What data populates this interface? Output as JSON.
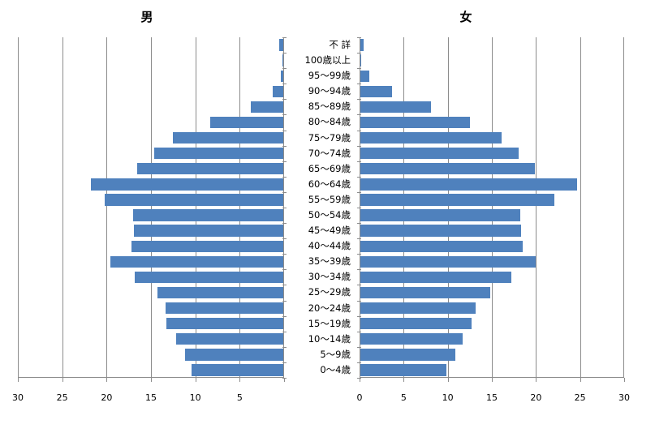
{
  "chart_data": [
    {
      "type": "bar",
      "orientation": "horizontal",
      "title": "男",
      "xlabel": "",
      "ylabel": "",
      "xlim": [
        30,
        0
      ],
      "xticks": [
        30,
        25,
        20,
        15,
        10,
        5
      ],
      "grid": true,
      "categories": [
        "不 詳",
        "100歳以上",
        "95〜99歳",
        "90〜94歳",
        "85〜89歳",
        "80〜84歳",
        "75〜79歳",
        "70〜74歳",
        "65〜69歳",
        "60〜64歳",
        "55〜59歳",
        "50〜54歳",
        "45〜49歳",
        "40〜44歳",
        "35〜39歳",
        "30〜34歳",
        "25〜29歳",
        "20〜24歳",
        "15〜19歳",
        "10〜14歳",
        "5〜9歳",
        "0〜4歳"
      ],
      "values": [
        0.5,
        0.05,
        0.3,
        1.2,
        3.7,
        8.2,
        12.4,
        14.5,
        16.5,
        21.7,
        20.1,
        16.9,
        16.8,
        17.1,
        19.5,
        16.7,
        14.2,
        13.3,
        13.2,
        12.1,
        11.1,
        10.3
      ],
      "color": "#4f81bd"
    },
    {
      "type": "bar",
      "orientation": "horizontal",
      "title": "女",
      "xlabel": "",
      "ylabel": "",
      "xlim": [
        0,
        30
      ],
      "xticks": [
        0,
        5,
        10,
        15,
        20,
        25,
        30
      ],
      "grid": true,
      "categories": [
        "不 詳",
        "100歳以上",
        "95〜99歳",
        "90〜94歳",
        "85〜89歳",
        "80〜84歳",
        "75〜79歳",
        "70〜74歳",
        "65〜69歳",
        "60〜64歳",
        "55〜59歳",
        "50〜54歳",
        "45〜49歳",
        "40〜44歳",
        "35〜39歳",
        "30〜34歳",
        "25〜29歳",
        "20〜24歳",
        "15〜19歳",
        "10〜14歳",
        "5〜9歳",
        "0〜4歳"
      ],
      "values": [
        0.4,
        0.1,
        1.0,
        3.6,
        8.0,
        12.4,
        16.0,
        17.9,
        19.8,
        24.6,
        22.0,
        18.1,
        18.2,
        18.4,
        19.9,
        17.1,
        14.7,
        13.1,
        12.6,
        11.6,
        10.8,
        9.8
      ],
      "color": "#4f81bd"
    }
  ],
  "titles": {
    "male": "男",
    "female": "女"
  }
}
